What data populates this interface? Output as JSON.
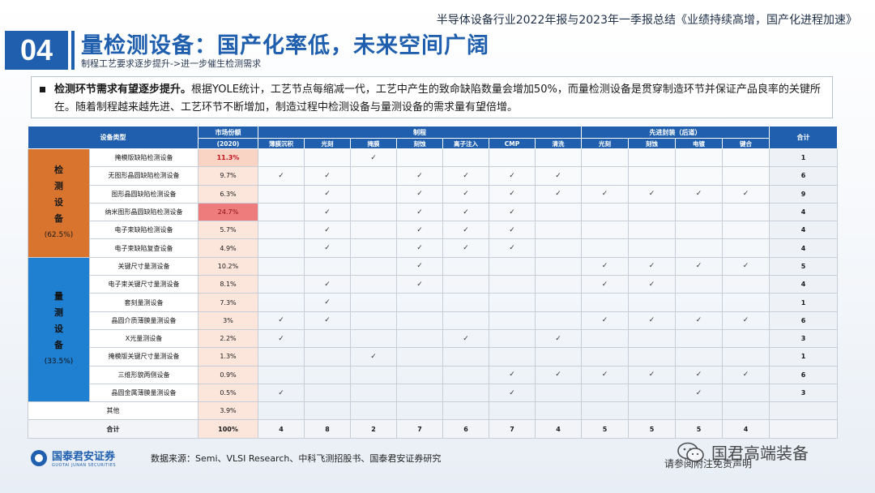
{
  "header": {
    "doc_title": "半导体设备行业2022年报与2023年一季报总结《业绩持续高增，国产化进程加速》",
    "section_number": "04",
    "title": "量检测设备：国产化率低，未来空间广阔",
    "subtitle": "制程工艺要求逐步提升->进一步催生检测需求"
  },
  "intro": {
    "bold": "检测环节需求有望逐步提升。",
    "text": "根据YOLE统计，工艺节点每缩减一代，工艺中产生的致命缺陷数量会增加50%，而量检测设备是贯穿制造环节并保证产品良率的关键所在。随着制程越来越先进、工艺环节不断增加，制造过程中检测设备与量测设备的需求量有望倍增。"
  },
  "table": {
    "col_equipment_type": "设备类型",
    "col_market_share": "市场份额",
    "col_market_share_year": "(2020)",
    "group_process": "制程",
    "group_packaging": "先进封装（后道）",
    "col_total": "合计",
    "process_cols": [
      "薄膜沉积",
      "光刻",
      "掩膜",
      "刻蚀",
      "离子注入",
      "CMP",
      "清洗"
    ],
    "packaging_cols": [
      "光刻",
      "刻蚀",
      "电镀",
      "键合"
    ],
    "tick": "✓",
    "groups": [
      {
        "label_chars": [
          "检",
          "测",
          "设",
          "备"
        ],
        "share": "(62.5%)",
        "style": "orange"
      },
      {
        "label_chars": [
          "量",
          "测",
          "设",
          "备"
        ],
        "share": "(33.5%)",
        "style": "blue"
      }
    ],
    "rows": [
      {
        "name": "掩模版缺陷检测设备",
        "share": "11.3%",
        "marks": [
          0,
          0,
          1,
          0,
          0,
          0,
          0,
          0,
          0,
          0,
          0
        ],
        "total": "1",
        "group": 0,
        "hl": "hi1"
      },
      {
        "name": "无图形晶圆缺陷检测设备",
        "share": "9.7%",
        "marks": [
          1,
          1,
          0,
          1,
          1,
          1,
          1,
          0,
          0,
          0,
          0
        ],
        "total": "6",
        "group": 0,
        "hl": ""
      },
      {
        "name": "图形晶圆缺陷检测设备",
        "share": "6.3%",
        "marks": [
          0,
          1,
          0,
          1,
          1,
          1,
          1,
          1,
          1,
          1,
          1
        ],
        "total": "9",
        "group": 0,
        "hl": ""
      },
      {
        "name": "纳米图形晶圆缺陷检测设备",
        "share": "24.7%",
        "marks": [
          0,
          1,
          0,
          1,
          1,
          1,
          0,
          0,
          0,
          0,
          0
        ],
        "total": "4",
        "group": 0,
        "hl": "hi2"
      },
      {
        "name": "电子束缺陷检测设备",
        "share": "5.7%",
        "marks": [
          0,
          1,
          0,
          1,
          1,
          1,
          0,
          0,
          0,
          0,
          0
        ],
        "total": "4",
        "group": 0,
        "hl": ""
      },
      {
        "name": "电子束缺陷复查设备",
        "share": "4.9%",
        "marks": [
          0,
          1,
          0,
          1,
          1,
          1,
          0,
          0,
          0,
          0,
          0
        ],
        "total": "4",
        "group": 0,
        "hl": ""
      },
      {
        "name": "关键尺寸量测设备",
        "share": "10.2%",
        "marks": [
          0,
          0,
          0,
          1,
          0,
          0,
          0,
          1,
          1,
          1,
          1
        ],
        "total": "5",
        "group": 1,
        "hl": ""
      },
      {
        "name": "电子束关键尺寸量测设备",
        "share": "8.1%",
        "marks": [
          0,
          1,
          0,
          1,
          0,
          0,
          0,
          1,
          1,
          0,
          0
        ],
        "total": "4",
        "group": 1,
        "hl": ""
      },
      {
        "name": "套刻量测设备",
        "share": "7.3%",
        "marks": [
          0,
          1,
          0,
          0,
          0,
          0,
          0,
          0,
          0,
          0,
          0
        ],
        "total": "1",
        "group": 1,
        "hl": ""
      },
      {
        "name": "晶圆介质薄膜量测设备",
        "share": "3%",
        "marks": [
          1,
          1,
          0,
          0,
          0,
          0,
          0,
          1,
          1,
          1,
          1
        ],
        "total": "6",
        "group": 1,
        "hl": ""
      },
      {
        "name": "X光量测设备",
        "share": "2.2%",
        "marks": [
          1,
          0,
          0,
          0,
          1,
          0,
          1,
          0,
          0,
          0,
          0
        ],
        "total": "3",
        "group": 1,
        "hl": ""
      },
      {
        "name": "掩模版关键尺寸量测设备",
        "share": "1.3%",
        "marks": [
          0,
          0,
          1,
          0,
          0,
          0,
          0,
          0,
          0,
          0,
          0
        ],
        "total": "1",
        "group": 1,
        "hl": ""
      },
      {
        "name": "三维形貌两侧设备",
        "share": "0.9%",
        "marks": [
          0,
          0,
          0,
          0,
          0,
          1,
          1,
          1,
          1,
          1,
          1
        ],
        "total": "6",
        "group": 1,
        "hl": ""
      },
      {
        "name": "晶圆金属薄膜量测设备",
        "share": "0.5%",
        "marks": [
          1,
          0,
          0,
          0,
          0,
          1,
          0,
          0,
          0,
          1,
          0
        ],
        "total": "3",
        "group": 1,
        "hl": ""
      }
    ],
    "other_row": {
      "name": "其他",
      "share": "3.9%"
    },
    "sum_row": {
      "name": "合计",
      "share": "100%",
      "values": [
        "4",
        "8",
        "2",
        "7",
        "6",
        "7",
        "4",
        "5",
        "5",
        "5",
        "4"
      ],
      "total": ""
    }
  },
  "footer": {
    "logo_text": "国泰君安证券",
    "logo_sub": "GUOTAI JUNAN SECURITIES",
    "source": "数据来源：Semi、VLSI Research、中科飞测招股书、国泰君安证券研究",
    "note": "请参阅附注免责声明",
    "watermark": "国君高端装备"
  }
}
